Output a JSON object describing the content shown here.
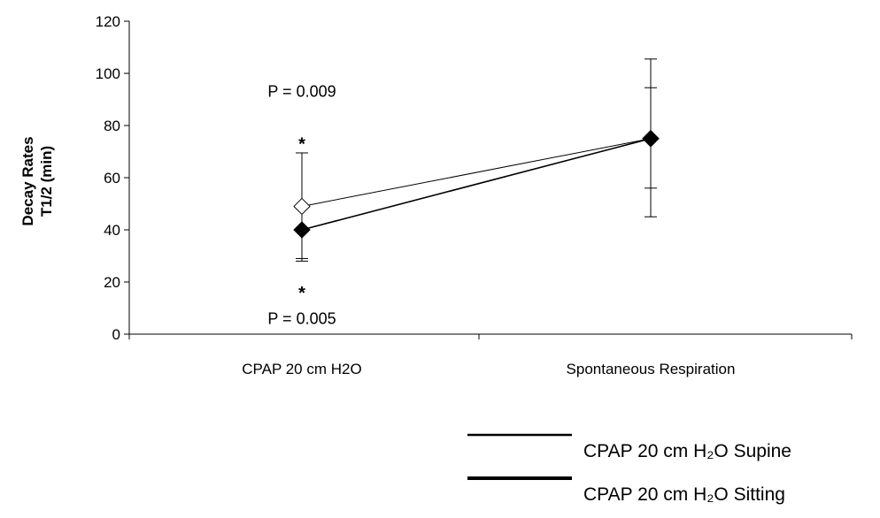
{
  "chart_data": {
    "type": "line",
    "categories": [
      "CPAP 20 cm H2O",
      "Spontaneous Respiration"
    ],
    "ylabel": [
      "Decay Rates",
      "T1/2 (min)"
    ],
    "ylim": [
      0,
      120
    ],
    "yticks": [
      0,
      20,
      40,
      60,
      80,
      100,
      120
    ],
    "grid": false,
    "legend_position": "bottom-right",
    "series": [
      {
        "name": "CPAP 20 cm H₂O Supine",
        "marker": "open-diamond",
        "values": [
          49,
          75
        ],
        "error_low": [
          29,
          56
        ],
        "error_high": [
          69.5,
          94.5
        ]
      },
      {
        "name": "CPAP 20 cm H₂O Sitting",
        "marker": "filled-diamond",
        "values": [
          40,
          75
        ],
        "error_low": [
          28,
          45
        ],
        "error_high": [
          40,
          105.5
        ]
      }
    ],
    "annotations": [
      {
        "text": "P = 0.009",
        "x_index": 0,
        "y": 93
      },
      {
        "text": "*",
        "x_index": 0,
        "y": 74
      },
      {
        "text": "*",
        "x_index": 0,
        "y": 17
      },
      {
        "text": "P = 0.005",
        "x_index": 0,
        "y": 6
      }
    ]
  },
  "legend": {
    "supine_label": "CPAP 20 cm H₂O Supine",
    "sitting_label": "CPAP 20 cm H₂O Sitting"
  }
}
